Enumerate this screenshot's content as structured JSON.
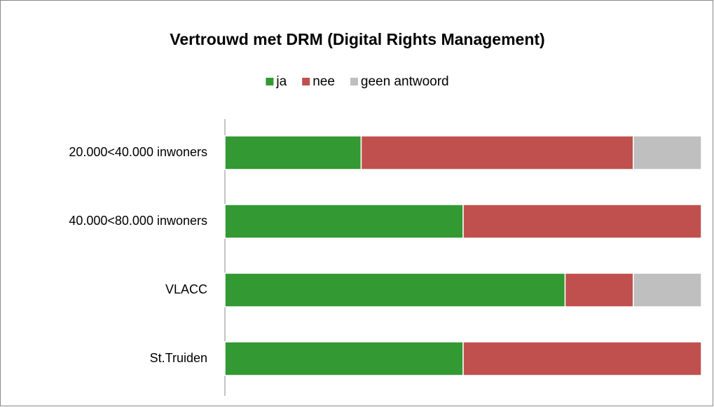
{
  "chart_data": {
    "type": "stacked_bar_horizontal",
    "title": "Vertrouwd met DRM (Digital Rights Management)",
    "categories": [
      "20.000<40.000 inwoners",
      "40.000<80.000 inwoners",
      "VLACC",
      "St.Truiden"
    ],
    "series": [
      {
        "name": "ja",
        "color": "#339933",
        "values": [
          28.6,
          50,
          71.4,
          50
        ]
      },
      {
        "name": "nee",
        "color": "#c0504d",
        "values": [
          57.1,
          50,
          14.3,
          50
        ]
      },
      {
        "name": "geen antwoord",
        "color": "#bfbfbf",
        "values": [
          14.3,
          0,
          14.3,
          0
        ]
      }
    ],
    "xlim": [
      0,
      100
    ],
    "legend": "top"
  }
}
